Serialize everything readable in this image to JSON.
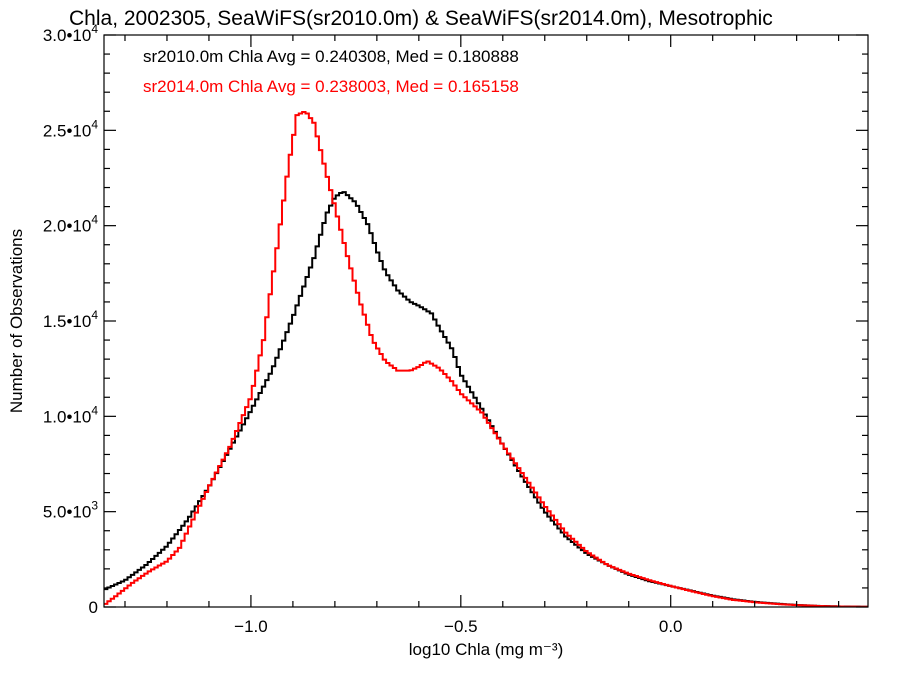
{
  "chart_data": {
    "type": "line",
    "title": "Chla, 2002305, SeaWiFS(sr2010.0m) & SeaWiFS(sr2014.0m), Mesotrophic",
    "xlabel": "log10 Chla (mg m⁻³)",
    "ylabel": "Number of Observations",
    "xlim": [
      -1.35,
      0.47
    ],
    "ylim": [
      0,
      30000
    ],
    "x_ticks": [
      {
        "value": -1.0,
        "label": "−1.0"
      },
      {
        "value": -0.5,
        "label": "−0.5"
      },
      {
        "value": 0.0,
        "label": "0.0"
      }
    ],
    "y_ticks": [
      {
        "value": 0,
        "mantissa": "0",
        "exponent": ""
      },
      {
        "value": 5000,
        "mantissa": "5.0•10",
        "exponent": "3"
      },
      {
        "value": 10000,
        "mantissa": "1.0•10",
        "exponent": "4"
      },
      {
        "value": 15000,
        "mantissa": "1.5•10",
        "exponent": "4"
      },
      {
        "value": 20000,
        "mantissa": "2.0•10",
        "exponent": "4"
      },
      {
        "value": 25000,
        "mantissa": "2.5•10",
        "exponent": "4"
      },
      {
        "value": 30000,
        "mantissa": "3.0•10",
        "exponent": "4"
      }
    ],
    "grid": false,
    "legend_position": "top-left",
    "step": true,
    "series": [
      {
        "name": "sr2010.0m Chla Avg = 0.240308, Med = 0.180888",
        "color": "#000000",
        "points": [
          [
            -1.35,
            900
          ],
          [
            -1.3,
            1400
          ],
          [
            -1.25,
            2200
          ],
          [
            -1.2,
            3200
          ],
          [
            -1.15,
            4600
          ],
          [
            -1.1,
            6300
          ],
          [
            -1.05,
            8300
          ],
          [
            -1.0,
            10300
          ],
          [
            -0.95,
            12400
          ],
          [
            -0.9,
            15200
          ],
          [
            -0.85,
            18300
          ],
          [
            -0.82,
            20600
          ],
          [
            -0.8,
            21500
          ],
          [
            -0.78,
            21800
          ],
          [
            -0.75,
            21200
          ],
          [
            -0.72,
            20000
          ],
          [
            -0.7,
            18700
          ],
          [
            -0.68,
            17600
          ],
          [
            -0.65,
            16600
          ],
          [
            -0.62,
            16000
          ],
          [
            -0.6,
            15800
          ],
          [
            -0.57,
            15400
          ],
          [
            -0.55,
            14600
          ],
          [
            -0.52,
            13500
          ],
          [
            -0.5,
            12200
          ],
          [
            -0.45,
            10400
          ],
          [
            -0.4,
            8500
          ],
          [
            -0.35,
            6700
          ],
          [
            -0.3,
            5000
          ],
          [
            -0.25,
            3700
          ],
          [
            -0.2,
            2800
          ],
          [
            -0.15,
            2200
          ],
          [
            -0.1,
            1700
          ],
          [
            -0.05,
            1350
          ],
          [
            0.0,
            1100
          ],
          [
            0.05,
            850
          ],
          [
            0.1,
            600
          ],
          [
            0.15,
            400
          ],
          [
            0.2,
            270
          ],
          [
            0.25,
            180
          ],
          [
            0.3,
            110
          ],
          [
            0.35,
            60
          ],
          [
            0.4,
            30
          ],
          [
            0.47,
            10
          ]
        ]
      },
      {
        "name": "sr2014.0m Chla Avg = 0.238003, Med = 0.165158",
        "color": "#ff0000",
        "points": [
          [
            -1.35,
            100
          ],
          [
            -1.32,
            600
          ],
          [
            -1.28,
            1300
          ],
          [
            -1.24,
            1900
          ],
          [
            -1.2,
            2400
          ],
          [
            -1.17,
            3100
          ],
          [
            -1.14,
            4500
          ],
          [
            -1.1,
            6300
          ],
          [
            -1.05,
            8400
          ],
          [
            -1.0,
            11000
          ],
          [
            -0.97,
            14000
          ],
          [
            -0.94,
            18500
          ],
          [
            -0.91,
            23200
          ],
          [
            -0.89,
            25800
          ],
          [
            -0.87,
            26000
          ],
          [
            -0.85,
            25400
          ],
          [
            -0.83,
            23600
          ],
          [
            -0.8,
            21000
          ],
          [
            -0.77,
            18400
          ],
          [
            -0.74,
            16000
          ],
          [
            -0.71,
            14000
          ],
          [
            -0.68,
            12900
          ],
          [
            -0.65,
            12400
          ],
          [
            -0.62,
            12400
          ],
          [
            -0.6,
            12600
          ],
          [
            -0.58,
            12900
          ],
          [
            -0.55,
            12500
          ],
          [
            -0.52,
            11800
          ],
          [
            -0.5,
            11200
          ],
          [
            -0.45,
            10200
          ],
          [
            -0.4,
            8500
          ],
          [
            -0.35,
            6900
          ],
          [
            -0.3,
            5300
          ],
          [
            -0.25,
            3900
          ],
          [
            -0.2,
            2900
          ],
          [
            -0.15,
            2200
          ],
          [
            -0.1,
            1750
          ],
          [
            -0.05,
            1400
          ],
          [
            0.0,
            1100
          ],
          [
            0.05,
            830
          ],
          [
            0.1,
            570
          ],
          [
            0.15,
            370
          ],
          [
            0.2,
            250
          ],
          [
            0.25,
            160
          ],
          [
            0.3,
            100
          ],
          [
            0.35,
            55
          ],
          [
            0.4,
            25
          ],
          [
            0.47,
            10
          ]
        ]
      }
    ]
  }
}
